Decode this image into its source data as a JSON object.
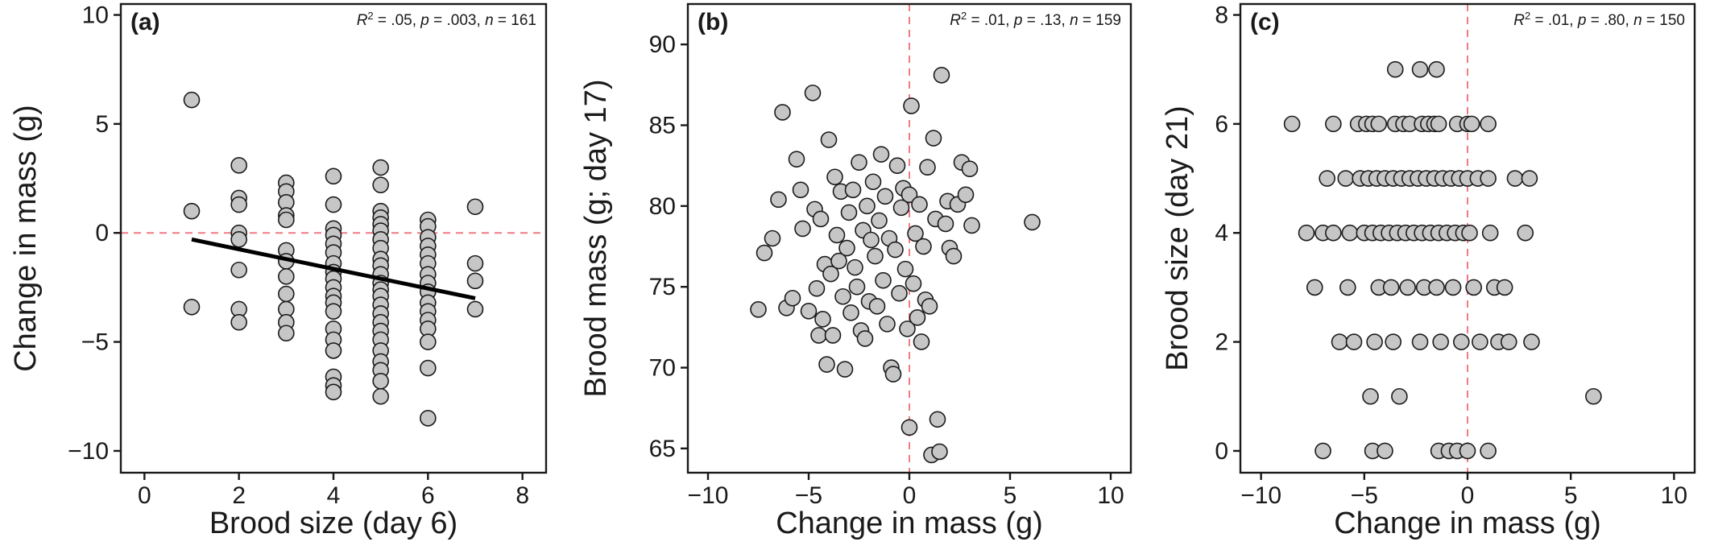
{
  "chart_data": [
    {
      "type": "scatter",
      "panel_label": "(a)",
      "stats_html": "<tspan font-style=\"italic\">R</tspan><tspan baseline-shift=\"super\" font-size=\"13\">2</tspan> = .05, <tspan font-style=\"italic\">p</tspan> = .003, <tspan font-style=\"italic\">n</tspan> = 161",
      "xlabel": "Brood size (day 6)",
      "ylabel": "Change in mass (g)",
      "xlim": [
        -0.5,
        8.5
      ],
      "ylim": [
        -11,
        10.5
      ],
      "xticks": [
        0,
        2,
        4,
        6,
        8
      ],
      "xtick_labels": [
        "0",
        "2",
        "4",
        "6",
        "8"
      ],
      "yticks": [
        -10,
        -5,
        0,
        5,
        10
      ],
      "ytick_labels": [
        "−10",
        "−5",
        "0",
        "5",
        "10"
      ],
      "reference_lines": [
        {
          "axis": "y",
          "value": 0
        }
      ],
      "fit_line": {
        "x": [
          1,
          7
        ],
        "y": [
          -0.3,
          -3.0
        ]
      },
      "points": [
        [
          1,
          6.1
        ],
        [
          1,
          1.0
        ],
        [
          1,
          -3.4
        ],
        [
          2,
          3.1
        ],
        [
          2,
          1.6
        ],
        [
          2,
          1.3
        ],
        [
          2,
          0.0
        ],
        [
          2,
          -0.3
        ],
        [
          2,
          -1.7
        ],
        [
          2,
          -3.5
        ],
        [
          2,
          -4.1
        ],
        [
          3,
          2.3
        ],
        [
          3,
          1.9
        ],
        [
          3,
          1.4
        ],
        [
          3,
          0.8
        ],
        [
          3,
          0.6
        ],
        [
          3,
          -0.8
        ],
        [
          3,
          -1.3
        ],
        [
          3,
          -2.0
        ],
        [
          3,
          -2.8
        ],
        [
          3,
          -3.5
        ],
        [
          3,
          -4.1
        ],
        [
          3,
          -4.6
        ],
        [
          4,
          2.6
        ],
        [
          4,
          1.3
        ],
        [
          4,
          0.2
        ],
        [
          4,
          -0.1
        ],
        [
          4,
          -0.5
        ],
        [
          4,
          -0.9
        ],
        [
          4,
          -1.4
        ],
        [
          4,
          -1.8
        ],
        [
          4,
          -2.1
        ],
        [
          4,
          -2.5
        ],
        [
          4,
          -2.9
        ],
        [
          4,
          -3.2
        ],
        [
          4,
          -3.6
        ],
        [
          4,
          -4.4
        ],
        [
          4,
          -4.9
        ],
        [
          4,
          -5.4
        ],
        [
          4,
          -6.6
        ],
        [
          4,
          -7.0
        ],
        [
          4,
          -7.3
        ],
        [
          5,
          3.0
        ],
        [
          5,
          2.2
        ],
        [
          5,
          1.0
        ],
        [
          5,
          0.7
        ],
        [
          5,
          0.4
        ],
        [
          5,
          0.1
        ],
        [
          5,
          -0.3
        ],
        [
          5,
          -0.7
        ],
        [
          5,
          -1.2
        ],
        [
          5,
          -1.5
        ],
        [
          5,
          -1.9
        ],
        [
          5,
          -2.3
        ],
        [
          5,
          -2.6
        ],
        [
          5,
          -2.9
        ],
        [
          5,
          -3.3
        ],
        [
          5,
          -3.7
        ],
        [
          5,
          -4.1
        ],
        [
          5,
          -4.5
        ],
        [
          5,
          -4.9
        ],
        [
          5,
          -5.4
        ],
        [
          5,
          -5.9
        ],
        [
          5,
          -6.3
        ],
        [
          5,
          -6.8
        ],
        [
          5,
          -7.5
        ],
        [
          6,
          0.6
        ],
        [
          6,
          0.3
        ],
        [
          6,
          -0.2
        ],
        [
          6,
          -0.6
        ],
        [
          6,
          -1.0
        ],
        [
          6,
          -1.4
        ],
        [
          6,
          -1.9
        ],
        [
          6,
          -2.3
        ],
        [
          6,
          -2.7
        ],
        [
          6,
          -3.2
        ],
        [
          6,
          -3.6
        ],
        [
          6,
          -4.0
        ],
        [
          6,
          -4.4
        ],
        [
          6,
          -5.0
        ],
        [
          6,
          -6.2
        ],
        [
          6,
          -8.5
        ],
        [
          7,
          1.2
        ],
        [
          7,
          -1.4
        ],
        [
          7,
          -2.2
        ],
        [
          7,
          -3.5
        ]
      ]
    },
    {
      "type": "scatter",
      "panel_label": "(b)",
      "stats_html": "<tspan font-style=\"italic\">R</tspan><tspan baseline-shift=\"super\" font-size=\"13\">2</tspan> = .01, <tspan font-style=\"italic\">p</tspan> = .13, <tspan font-style=\"italic\">n</tspan> = 159",
      "xlabel": "Change in mass (g)",
      "ylabel": "Brood mass (g; day 17)",
      "xlim": [
        -11,
        11
      ],
      "ylim": [
        63.5,
        92.5
      ],
      "xticks": [
        -10,
        -5,
        0,
        5,
        10
      ],
      "xtick_labels": [
        "−10",
        "−5",
        "0",
        "5",
        "10"
      ],
      "yticks": [
        65,
        70,
        75,
        80,
        85,
        90
      ],
      "ytick_labels": [
        "65",
        "70",
        "75",
        "80",
        "85",
        "90"
      ],
      "reference_lines": [
        {
          "axis": "x",
          "value": 0
        }
      ],
      "points": [
        [
          -7.5,
          73.6
        ],
        [
          -7.2,
          77.1
        ],
        [
          -6.8,
          78.0
        ],
        [
          -6.5,
          80.4
        ],
        [
          -6.3,
          85.8
        ],
        [
          -6.1,
          73.7
        ],
        [
          -5.8,
          74.3
        ],
        [
          -5.6,
          82.9
        ],
        [
          -5.4,
          81.0
        ],
        [
          -5.3,
          78.6
        ],
        [
          -5.0,
          73.5
        ],
        [
          -4.8,
          87.0
        ],
        [
          -4.7,
          79.8
        ],
        [
          -4.6,
          74.9
        ],
        [
          -4.5,
          72.0
        ],
        [
          -4.4,
          79.2
        ],
        [
          -4.3,
          73.0
        ],
        [
          -4.2,
          76.4
        ],
        [
          -4.1,
          70.2
        ],
        [
          -4.0,
          84.1
        ],
        [
          -3.9,
          75.8
        ],
        [
          -3.8,
          72.0
        ],
        [
          -3.7,
          81.8
        ],
        [
          -3.6,
          78.2
        ],
        [
          -3.5,
          76.6
        ],
        [
          -3.4,
          80.9
        ],
        [
          -3.3,
          74.4
        ],
        [
          -3.2,
          69.9
        ],
        [
          -3.1,
          77.4
        ],
        [
          -3.0,
          79.6
        ],
        [
          -2.9,
          73.4
        ],
        [
          -2.8,
          81.0
        ],
        [
          -2.7,
          76.2
        ],
        [
          -2.6,
          75.0
        ],
        [
          -2.5,
          82.7
        ],
        [
          -2.4,
          72.3
        ],
        [
          -2.3,
          78.5
        ],
        [
          -2.2,
          71.8
        ],
        [
          -2.1,
          80.0
        ],
        [
          -2.0,
          74.1
        ],
        [
          -1.9,
          77.9
        ],
        [
          -1.8,
          81.5
        ],
        [
          -1.7,
          76.9
        ],
        [
          -1.6,
          73.8
        ],
        [
          -1.5,
          79.1
        ],
        [
          -1.4,
          83.2
        ],
        [
          -1.3,
          75.4
        ],
        [
          -1.2,
          80.6
        ],
        [
          -1.1,
          72.7
        ],
        [
          -1.0,
          78.0
        ],
        [
          -0.9,
          70.0
        ],
        [
          -0.8,
          69.6
        ],
        [
          -0.7,
          77.3
        ],
        [
          -0.6,
          82.5
        ],
        [
          -0.5,
          74.6
        ],
        [
          -0.4,
          79.9
        ],
        [
          -0.3,
          81.1
        ],
        [
          -0.2,
          76.1
        ],
        [
          -0.1,
          72.4
        ],
        [
          0.0,
          80.7
        ],
        [
          0.0,
          66.3
        ],
        [
          0.1,
          86.2
        ],
        [
          0.2,
          75.2
        ],
        [
          0.3,
          78.3
        ],
        [
          0.4,
          73.1
        ],
        [
          0.5,
          80.1
        ],
        [
          0.6,
          71.6
        ],
        [
          0.7,
          77.5
        ],
        [
          0.8,
          74.2
        ],
        [
          0.9,
          82.4
        ],
        [
          1.0,
          73.8
        ],
        [
          1.1,
          64.6
        ],
        [
          1.2,
          84.2
        ],
        [
          1.3,
          79.2
        ],
        [
          1.4,
          66.8
        ],
        [
          1.5,
          64.8
        ],
        [
          1.6,
          88.1
        ],
        [
          1.8,
          78.9
        ],
        [
          1.9,
          80.3
        ],
        [
          2.0,
          77.4
        ],
        [
          2.2,
          76.9
        ],
        [
          2.4,
          80.1
        ],
        [
          2.6,
          82.7
        ],
        [
          2.8,
          80.7
        ],
        [
          3.0,
          82.3
        ],
        [
          3.1,
          78.8
        ],
        [
          6.1,
          79.0
        ]
      ]
    },
    {
      "type": "scatter",
      "panel_label": "(c)",
      "stats_html": "<tspan font-style=\"italic\">R</tspan><tspan baseline-shift=\"super\" font-size=\"13\">2</tspan> = .01, <tspan font-style=\"italic\">p</tspan> = .80, <tspan font-style=\"italic\">n</tspan> = 150",
      "xlabel": "Change in mass (g)",
      "ylabel": "Brood size (day 21)",
      "xlim": [
        -11,
        11
      ],
      "ylim": [
        -0.4,
        8.2
      ],
      "xticks": [
        -10,
        -5,
        0,
        5,
        10
      ],
      "xtick_labels": [
        "−10",
        "−5",
        "0",
        "5",
        "10"
      ],
      "yticks": [
        0,
        2,
        4,
        6,
        8
      ],
      "ytick_labels": [
        "0",
        "2",
        "4",
        "6",
        "8"
      ],
      "reference_lines": [
        {
          "axis": "x",
          "value": 0
        }
      ],
      "points": [
        [
          -3.5,
          7
        ],
        [
          -2.3,
          7
        ],
        [
          -1.5,
          7
        ],
        [
          -8.5,
          6
        ],
        [
          -6.5,
          6
        ],
        [
          -5.3,
          6
        ],
        [
          -4.9,
          6
        ],
        [
          -4.6,
          6
        ],
        [
          -4.3,
          6
        ],
        [
          -3.5,
          6
        ],
        [
          -3.1,
          6
        ],
        [
          -2.8,
          6
        ],
        [
          -2.2,
          6
        ],
        [
          -1.9,
          6
        ],
        [
          -1.6,
          6
        ],
        [
          -1.4,
          6
        ],
        [
          -0.5,
          6
        ],
        [
          0.0,
          6
        ],
        [
          0.2,
          6
        ],
        [
          1.0,
          6
        ],
        [
          -6.8,
          5
        ],
        [
          -5.9,
          5
        ],
        [
          -5.2,
          5
        ],
        [
          -4.8,
          5
        ],
        [
          -4.4,
          5
        ],
        [
          -4.0,
          5
        ],
        [
          -3.6,
          5
        ],
        [
          -3.2,
          5
        ],
        [
          -2.8,
          5
        ],
        [
          -2.4,
          5
        ],
        [
          -2.0,
          5
        ],
        [
          -1.6,
          5
        ],
        [
          -1.2,
          5
        ],
        [
          -0.8,
          5
        ],
        [
          -0.4,
          5
        ],
        [
          0.0,
          5
        ],
        [
          0.5,
          5
        ],
        [
          1.0,
          5
        ],
        [
          2.3,
          5
        ],
        [
          3.0,
          5
        ],
        [
          -7.8,
          4
        ],
        [
          -7.0,
          4
        ],
        [
          -6.5,
          4
        ],
        [
          -5.7,
          4
        ],
        [
          -5.0,
          4
        ],
        [
          -4.6,
          4
        ],
        [
          -4.2,
          4
        ],
        [
          -3.8,
          4
        ],
        [
          -3.4,
          4
        ],
        [
          -3.0,
          4
        ],
        [
          -2.6,
          4
        ],
        [
          -2.2,
          4
        ],
        [
          -1.8,
          4
        ],
        [
          -1.4,
          4
        ],
        [
          -1.0,
          4
        ],
        [
          -0.6,
          4
        ],
        [
          -0.2,
          4
        ],
        [
          0.1,
          4
        ],
        [
          1.1,
          4
        ],
        [
          2.8,
          4
        ],
        [
          -7.4,
          3
        ],
        [
          -5.8,
          3
        ],
        [
          -4.3,
          3
        ],
        [
          -3.7,
          3
        ],
        [
          -2.9,
          3
        ],
        [
          -2.1,
          3
        ],
        [
          -1.5,
          3
        ],
        [
          -0.7,
          3
        ],
        [
          0.3,
          3
        ],
        [
          1.3,
          3
        ],
        [
          1.8,
          3
        ],
        [
          -6.2,
          2
        ],
        [
          -5.5,
          2
        ],
        [
          -4.5,
          2
        ],
        [
          -3.6,
          2
        ],
        [
          -2.3,
          2
        ],
        [
          -1.3,
          2
        ],
        [
          -0.3,
          2
        ],
        [
          0.6,
          2
        ],
        [
          1.5,
          2
        ],
        [
          2.0,
          2
        ],
        [
          3.1,
          2
        ],
        [
          -4.7,
          1
        ],
        [
          -3.3,
          1
        ],
        [
          6.1,
          1
        ],
        [
          -7.0,
          0
        ],
        [
          -4.6,
          0
        ],
        [
          -4.0,
          0
        ],
        [
          -1.4,
          0
        ],
        [
          -0.9,
          0
        ],
        [
          -0.5,
          0
        ],
        [
          0.0,
          0
        ],
        [
          1.0,
          0
        ]
      ]
    }
  ]
}
